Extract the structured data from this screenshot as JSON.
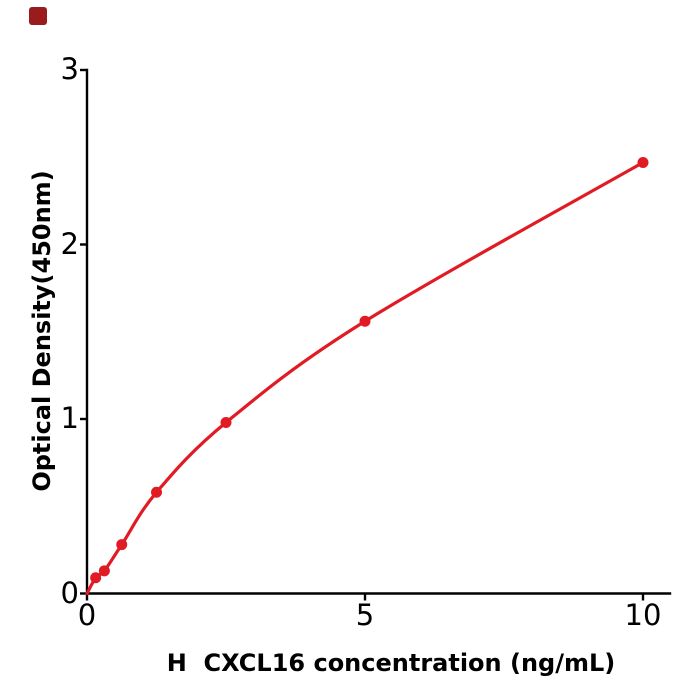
{
  "page": {
    "background": "#ffffff"
  },
  "brand_mark": {
    "color": "#9a1b1b"
  },
  "chart_data": {
    "type": "scatter",
    "title": "",
    "xlabel": "H  CXCL16 concentration (ng/mL)",
    "ylabel": "Optical Density(450nm)",
    "x": [
      0.156,
      0.3125,
      0.625,
      1.25,
      2.5,
      5,
      10
    ],
    "y": [
      0.09,
      0.13,
      0.28,
      0.58,
      0.98,
      1.56,
      2.47
    ],
    "curve_start": {
      "x": 0,
      "y": 0
    },
    "fit": "smooth saturating curve through all points",
    "x_tick_values": [
      0,
      5,
      10
    ],
    "x_tick_labels": [
      "0",
      "5",
      "10"
    ],
    "y_tick_values": [
      0,
      1,
      2,
      3
    ],
    "y_tick_labels": [
      "0",
      "1",
      "2",
      "3"
    ],
    "xlim": [
      0,
      10.5
    ],
    "ylim": [
      0,
      3
    ],
    "grid": false,
    "legend": null,
    "line_color": "#e11b23",
    "marker_color": "#e11b23",
    "marker": "filled-circle",
    "axis_color": "#000000",
    "tick_color": "#000000"
  }
}
